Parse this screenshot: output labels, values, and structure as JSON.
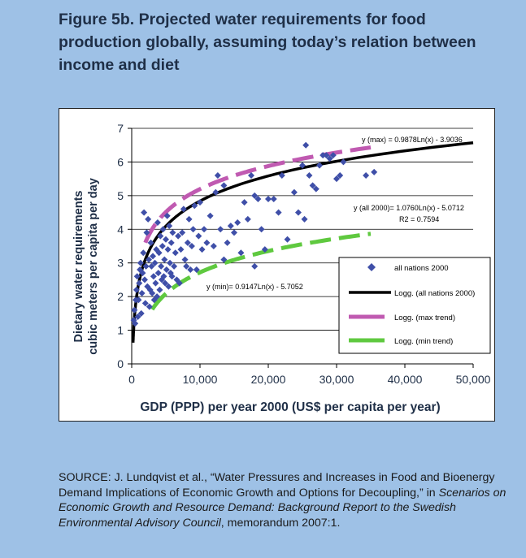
{
  "figure": {
    "title_line1": "Figure 5b. Projected water requirements for food",
    "title_line2": "production globally, assuming today’s relation between",
    "title_line3": "income and diet"
  },
  "chart_data": {
    "type": "scatter",
    "xlabel": "GDP (PPP) per year 2000 (US$ per capita per year)",
    "ylabel_line1": "Dietary water requirements",
    "ylabel_line2": "cubic meters per capita per day",
    "xlim": [
      0,
      50000
    ],
    "ylim": [
      0,
      7
    ],
    "x_ticks": [
      0,
      10000,
      20000,
      30000,
      40000,
      50000
    ],
    "x_tick_labels": [
      "0",
      "10,000",
      "20,000",
      "30,000",
      "40,000",
      "50,000"
    ],
    "y_ticks": [
      0,
      1,
      2,
      3,
      4,
      5,
      6,
      7
    ],
    "y_tick_labels": [
      "0",
      "1",
      "2",
      "3",
      "4",
      "5",
      "6",
      "7"
    ],
    "grid": "horizontal",
    "colors": {
      "points": "#3f4fa8",
      "all_trend": "#000000",
      "max_trend": "#c05ab1",
      "min_trend": "#5fc93f",
      "grid": "#000000"
    },
    "series": [
      {
        "name": "all nations 2000",
        "kind": "points",
        "points": [
          [
            300,
            1.3
          ],
          [
            400,
            1.6
          ],
          [
            500,
            1.2
          ],
          [
            600,
            1.9
          ],
          [
            700,
            2.2
          ],
          [
            800,
            2.6
          ],
          [
            900,
            1.4
          ],
          [
            1000,
            1.9
          ],
          [
            1100,
            2.4
          ],
          [
            1200,
            2.8
          ],
          [
            1300,
            3.0
          ],
          [
            1400,
            1.5
          ],
          [
            1500,
            2.1
          ],
          [
            1600,
            2.7
          ],
          [
            1700,
            3.3
          ],
          [
            1800,
            4.5
          ],
          [
            1900,
            2.5
          ],
          [
            2000,
            1.8
          ],
          [
            2100,
            2.9
          ],
          [
            2200,
            3.9
          ],
          [
            2300,
            2.3
          ],
          [
            2400,
            4.3
          ],
          [
            2500,
            3.1
          ],
          [
            2600,
            1.7
          ],
          [
            2700,
            2.2
          ],
          [
            2800,
            3.6
          ],
          [
            2900,
            2.9
          ],
          [
            3000,
            2.1
          ],
          [
            3100,
            3.2
          ],
          [
            3200,
            2.6
          ],
          [
            3300,
            1.9
          ],
          [
            3400,
            3.0
          ],
          [
            3500,
            2.4
          ],
          [
            3600,
            3.4
          ],
          [
            3700,
            2.0
          ],
          [
            3800,
            4.2
          ],
          [
            3900,
            2.7
          ],
          [
            4000,
            3.3
          ],
          [
            4100,
            2.2
          ],
          [
            4200,
            3.8
          ],
          [
            4300,
            2.9
          ],
          [
            4400,
            2.5
          ],
          [
            4500,
            3.5
          ],
          [
            4600,
            4.0
          ],
          [
            4700,
            2.6
          ],
          [
            4800,
            3.1
          ],
          [
            4900,
            2.4
          ],
          [
            5000,
            3.7
          ],
          [
            5100,
            2.8
          ],
          [
            5200,
            4.4
          ],
          [
            5300,
            3.4
          ],
          [
            5400,
            2.3
          ],
          [
            5500,
            4.1
          ],
          [
            5600,
            3.0
          ],
          [
            5700,
            2.7
          ],
          [
            5800,
            3.6
          ],
          [
            5900,
            2.6
          ],
          [
            6000,
            3.9
          ],
          [
            6200,
            2.9
          ],
          [
            6400,
            3.3
          ],
          [
            6600,
            2.5
          ],
          [
            6800,
            3.8
          ],
          [
            7000,
            2.4
          ],
          [
            7200,
            3.4
          ],
          [
            7400,
            3.9
          ],
          [
            7600,
            4.6
          ],
          [
            7800,
            3.1
          ],
          [
            8000,
            2.9
          ],
          [
            8200,
            3.6
          ],
          [
            8400,
            4.3
          ],
          [
            8600,
            2.8
          ],
          [
            8800,
            3.5
          ],
          [
            9000,
            4.0
          ],
          [
            9200,
            4.7
          ],
          [
            9500,
            2.8
          ],
          [
            9800,
            3.8
          ],
          [
            10000,
            4.8
          ],
          [
            10300,
            3.4
          ],
          [
            10600,
            4.0
          ],
          [
            11000,
            3.6
          ],
          [
            11500,
            4.4
          ],
          [
            12000,
            3.5
          ],
          [
            12300,
            5.1
          ],
          [
            12600,
            5.6
          ],
          [
            13000,
            4.0
          ],
          [
            13500,
            3.1
          ],
          [
            14000,
            3.6
          ],
          [
            14500,
            4.1
          ],
          [
            15000,
            3.9
          ],
          [
            15500,
            4.2
          ],
          [
            16000,
            3.3
          ],
          [
            16500,
            4.8
          ],
          [
            17000,
            4.3
          ],
          [
            17500,
            5.6
          ],
          [
            18000,
            5.0
          ],
          [
            18500,
            4.9
          ],
          [
            19000,
            4.0
          ],
          [
            19500,
            3.4
          ],
          [
            20000,
            4.9
          ],
          [
            20800,
            4.9
          ],
          [
            21500,
            4.5
          ],
          [
            22000,
            5.6
          ],
          [
            22800,
            3.7
          ],
          [
            23800,
            5.1
          ],
          [
            24400,
            4.5
          ],
          [
            25000,
            5.9
          ],
          [
            25500,
            6.5
          ],
          [
            26000,
            5.6
          ],
          [
            26500,
            5.3
          ],
          [
            27000,
            5.2
          ],
          [
            27500,
            5.9
          ],
          [
            28000,
            6.2
          ],
          [
            28500,
            6.2
          ],
          [
            29000,
            6.1
          ],
          [
            29500,
            6.2
          ],
          [
            30000,
            5.5
          ],
          [
            30500,
            5.6
          ],
          [
            31000,
            6.0
          ],
          [
            34300,
            5.6
          ],
          [
            35500,
            5.7
          ],
          [
            13500,
            5.3
          ],
          [
            18000,
            2.9
          ],
          [
            25300,
            4.3
          ]
        ]
      },
      {
        "name": "Logg. (all nations 2000)",
        "kind": "log_trend",
        "a": 1.076,
        "b": -5.0712,
        "x_range": [
          200,
          50000
        ],
        "label_line1": "y (all 2000)= 1.0760Ln(x) - 5.0712",
        "label_line2": "R2 = 0.7594"
      },
      {
        "name": "Logg. (max trend)",
        "kind": "log_trend",
        "a": 0.9878,
        "b": -3.9036,
        "x_range": [
          2000,
          35000
        ],
        "label_line1": "y (max) = 0.9878Ln(x) - 3.9036"
      },
      {
        "name": "Logg. (min trend)",
        "kind": "log_trend",
        "a": 0.9147,
        "b": -5.7052,
        "x_range": [
          3000,
          35000
        ],
        "label_line1": "y (min)= 0.9147Ln(x) - 5.7052"
      }
    ],
    "legend": {
      "placement": "lower-right",
      "entries": [
        "all nations 2000",
        "Logg. (all nations 2000)",
        "Logg. (max trend)",
        "Logg. (min trend)"
      ]
    }
  },
  "source": {
    "prefix": "SOURCE: J. Lundqvist et al., “Water Pressures and Increases in Food and Bioenergy Demand Implications of Economic Growth and Options for Decoupling,” in ",
    "italic": "Scenarios on Economic Growth and Resource Demand: Background Report to the Swedish Environmental Advisory Council",
    "suffix": ", memorandum 2007:1."
  }
}
